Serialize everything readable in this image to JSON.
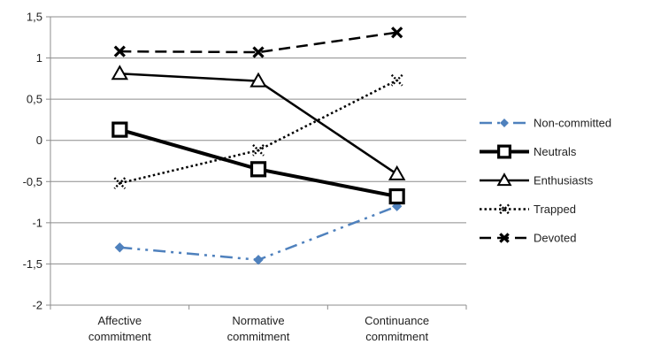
{
  "chart_data": {
    "type": "line",
    "categories": [
      [
        "Affective",
        "commitment"
      ],
      [
        "Normative",
        "commitment"
      ],
      [
        "Continuance",
        "commitment"
      ]
    ],
    "y_ticks": [
      "1,5",
      "1",
      "0,5",
      "0",
      "-0,5",
      "-1",
      "-1,5",
      "-2"
    ],
    "ylim": [
      -2,
      1.5
    ],
    "grid": "horizontal",
    "legend_position": "right",
    "series": [
      {
        "name": "Non-committed",
        "values": [
          -1.3,
          -1.45,
          -0.8
        ],
        "color": "#4f81bd",
        "dash": "dash-dot-dot",
        "marker": "diamond"
      },
      {
        "name": "Neutrals",
        "values": [
          0.13,
          -0.35,
          -0.68
        ],
        "color": "#000000",
        "dash": "solid-thick",
        "marker": "square"
      },
      {
        "name": "Enthusiasts",
        "values": [
          0.81,
          0.72,
          -0.41
        ],
        "color": "#000000",
        "dash": "solid",
        "marker": "triangle"
      },
      {
        "name": "Trapped",
        "values": [
          -0.52,
          -0.12,
          0.73
        ],
        "color": "#000000",
        "dash": "dotted",
        "marker": "x-dotted"
      },
      {
        "name": "Devoted",
        "values": [
          1.08,
          1.07,
          1.31
        ],
        "color": "#000000",
        "dash": "dashed",
        "marker": "x"
      }
    ]
  }
}
